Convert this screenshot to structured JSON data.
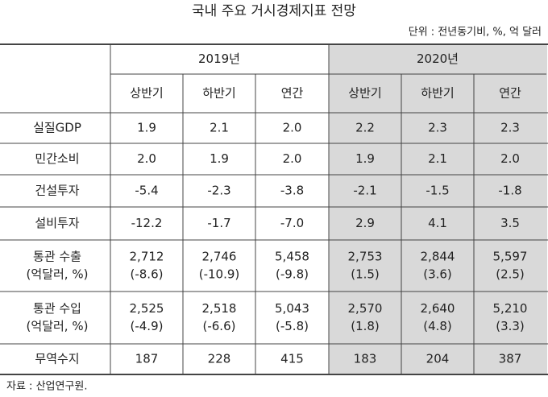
{
  "title": "국내 주요 거시경제지표 전망",
  "unit": "단위 : 전년동기비, %, 억 달러",
  "header": {
    "years": [
      "2019년",
      "2020년"
    ],
    "periods": [
      "상반기",
      "하반기",
      "연간",
      "상반기",
      "하반기",
      "연간"
    ]
  },
  "rows": [
    {
      "label": [
        "실질GDP"
      ],
      "cells": [
        [
          "1.9"
        ],
        [
          "2.1"
        ],
        [
          "2.0"
        ],
        [
          "2.2"
        ],
        [
          "2.3"
        ],
        [
          "2.3"
        ]
      ]
    },
    {
      "label": [
        "민간소비"
      ],
      "cells": [
        [
          "2.0"
        ],
        [
          "1.9"
        ],
        [
          "2.0"
        ],
        [
          "1.9"
        ],
        [
          "2.1"
        ],
        [
          "2.0"
        ]
      ]
    },
    {
      "label": [
        "건설투자"
      ],
      "cells": [
        [
          "-5.4"
        ],
        [
          "-2.3"
        ],
        [
          "-3.8"
        ],
        [
          "-2.1"
        ],
        [
          "-1.5"
        ],
        [
          "-1.8"
        ]
      ]
    },
    {
      "label": [
        "설비투자"
      ],
      "cells": [
        [
          "-12.2"
        ],
        [
          "-1.7"
        ],
        [
          "-7.0"
        ],
        [
          "2.9"
        ],
        [
          "4.1"
        ],
        [
          "3.5"
        ]
      ]
    },
    {
      "label": [
        "통관 수출",
        "(억달러, %)"
      ],
      "cells": [
        [
          "2,712",
          "(-8.6)"
        ],
        [
          "2,746",
          "(-10.9)"
        ],
        [
          "5,458",
          "(-9.8)"
        ],
        [
          "2,753",
          "(1.5)"
        ],
        [
          "2,844",
          "(3.6)"
        ],
        [
          "5,597",
          "(2.5)"
        ]
      ]
    },
    {
      "label": [
        "통관 수입",
        "(억달러, %)"
      ],
      "cells": [
        [
          "2,525",
          "(-4.9)"
        ],
        [
          "2,518",
          "(-6.6)"
        ],
        [
          "5,043",
          "(-5.8)"
        ],
        [
          "2,570",
          "(1.8)"
        ],
        [
          "2,640",
          "(4.8)"
        ],
        [
          "5,210",
          "(3.3)"
        ]
      ]
    },
    {
      "label": [
        "무역수지"
      ],
      "cells": [
        [
          "187"
        ],
        [
          "228"
        ],
        [
          "415"
        ],
        [
          "183"
        ],
        [
          "204"
        ],
        [
          "387"
        ]
      ]
    }
  ],
  "source": "자료 : 산업연구원."
}
